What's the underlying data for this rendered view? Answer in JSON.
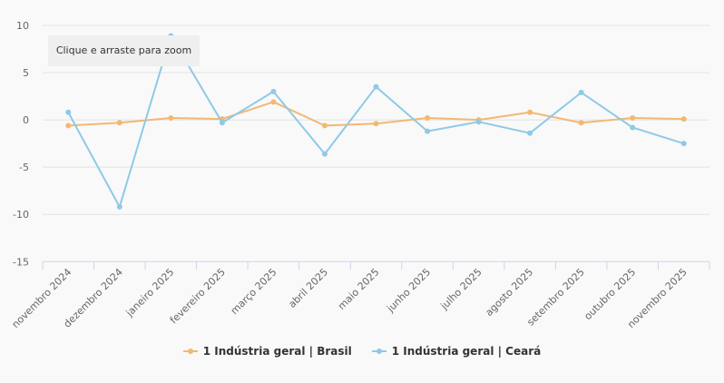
{
  "chart_data": {
    "type": "line",
    "title": "",
    "xlabel": "",
    "ylabel": "",
    "ylim": [
      -15,
      10
    ],
    "yticks": [
      "10",
      "5",
      "0",
      "-5",
      "-10",
      "-15"
    ],
    "ytick_values": [
      10,
      5,
      0,
      -5,
      -10,
      -15
    ],
    "grid": true,
    "legend_position": "bottom",
    "categories": [
      "novembro 2024",
      "dezembro 2024",
      "janeiro 2025",
      "fevereiro 2025",
      "março 2025",
      "abril 2025",
      "maio 2025",
      "junho 2025",
      "julho 2025",
      "agosto 2025",
      "setembro 2025",
      "outubro 2025",
      "novembro 2025"
    ],
    "series": [
      {
        "name": "1 Indústria geral | Brasil",
        "color": "#f2b872",
        "values": [
          -0.6,
          -0.3,
          0.2,
          0.1,
          1.9,
          -0.6,
          -0.4,
          0.2,
          0.0,
          0.8,
          -0.3,
          0.2,
          0.1
        ]
      },
      {
        "name": "1 Indústria geral | Ceará",
        "color": "#8ecae6",
        "values": [
          0.8,
          -9.2,
          8.9,
          -0.3,
          3.0,
          -3.6,
          3.5,
          -1.2,
          -0.2,
          -1.4,
          2.9,
          -0.8,
          -2.5
        ]
      }
    ]
  },
  "zoom_hint": "Clique e arraste para zoom"
}
